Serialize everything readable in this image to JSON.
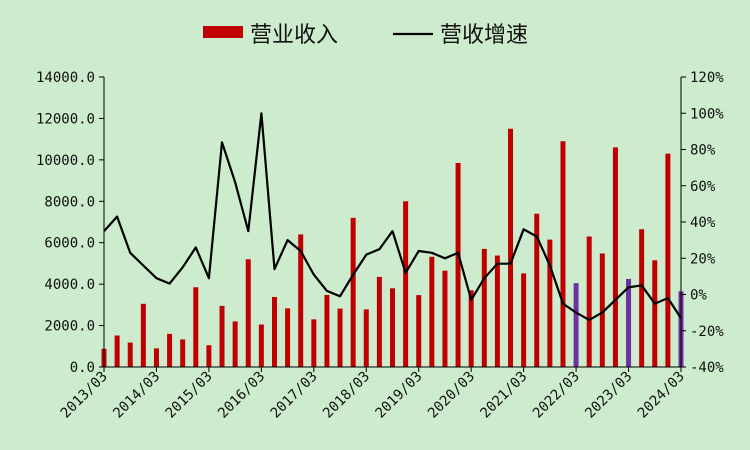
{
  "chart_data": {
    "type": "bar+line",
    "title": "",
    "legend": {
      "placement": "top-center",
      "items": [
        {
          "key": "revenue",
          "label": "营业收入",
          "kind": "bar",
          "color": "#c00000"
        },
        {
          "key": "growth",
          "label": "营收增速",
          "kind": "line",
          "color": "#000000"
        }
      ]
    },
    "x_labels": [
      "2013/03",
      "2014/03",
      "2015/03",
      "2016/03",
      "2017/03",
      "2018/03",
      "2019/03",
      "2020/03",
      "2021/03",
      "2022/03",
      "2023/03",
      "2024/03"
    ],
    "y_left": {
      "ticks": [
        "0.0",
        "2000.0",
        "4000.0",
        "6000.0",
        "8000.0",
        "10000.0",
        "12000.0",
        "14000.0"
      ],
      "min": 0,
      "max": 14000
    },
    "y_right": {
      "ticks": [
        "-40%",
        "-20%",
        "0%",
        "20%",
        "40%",
        "60%",
        "80%",
        "100%",
        "120%"
      ],
      "min": -40,
      "max": 120
    },
    "grid": false,
    "colors": {
      "bar": "#c00000",
      "bar_highlight": "#7030a0",
      "line": "#000000",
      "axis": "#000000",
      "background": "#cdeccd"
    },
    "highlight_indices": [
      36,
      40,
      44
    ],
    "series": [
      {
        "name": "营业收入",
        "type": "bar",
        "axis": "left",
        "values": [
          880,
          1520,
          1180,
          3050,
          900,
          1600,
          1330,
          3850,
          1050,
          2950,
          2200,
          5200,
          2050,
          3380,
          2830,
          6400,
          2300,
          3480,
          2820,
          7200,
          2780,
          4350,
          3800,
          8000,
          3470,
          5320,
          4650,
          9850,
          3700,
          5700,
          5380,
          11500,
          4520,
          7400,
          6150,
          10900,
          4050,
          6300,
          5480,
          10600,
          4250,
          6650,
          5150,
          10300,
          3650
        ]
      },
      {
        "name": "营收增速",
        "type": "line",
        "axis": "right",
        "values": [
          35,
          43,
          23,
          16,
          9,
          6,
          15,
          26,
          9,
          84,
          62,
          35,
          100,
          14,
          30,
          24,
          11,
          2,
          -1,
          11,
          22,
          25,
          35,
          12,
          24,
          23,
          20,
          23,
          -3,
          9,
          17,
          17,
          36,
          32,
          16,
          -5,
          -10,
          -14,
          -10,
          -3,
          4,
          5,
          -5,
          -2,
          -13
        ]
      }
    ]
  }
}
